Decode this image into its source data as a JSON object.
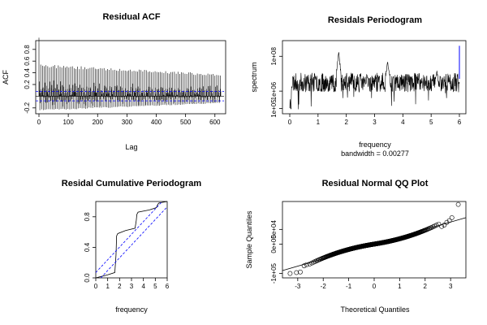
{
  "chart_data": [
    {
      "type": "bar",
      "title": "Residual ACF",
      "xlabel": "Lag",
      "ylabel": "ACF",
      "xlim": [
        0,
        620
      ],
      "ylim": [
        -0.3,
        0.95
      ],
      "xticks": [
        "0",
        "100",
        "200",
        "300",
        "400",
        "500",
        "600"
      ],
      "yticks": [
        "-0.2",
        "0.2",
        "0.4",
        "0.6",
        "0.8"
      ],
      "confidence_band": [
        -0.08,
        0.08
      ],
      "max_lag": 620,
      "lag0_value": 1.0,
      "seasonal_period": 6,
      "envelope": {
        "upper_start": 0.55,
        "upper_end": 0.38,
        "lower_start": -0.25,
        "lower_end": -0.12
      },
      "colors": {
        "band": "#0000ff",
        "bars": "#000000"
      }
    },
    {
      "type": "line",
      "title": "Residals Periodogram",
      "xlabel": "frequency",
      "sub": "bandwidth = 0.00277",
      "ylabel": "spectrum",
      "log_y": true,
      "xlim": [
        0,
        6
      ],
      "ylim_log10": [
        4.7,
        8.9
      ],
      "xticks": [
        "0",
        "1",
        "2",
        "3",
        "4",
        "5",
        "6"
      ],
      "yticks": [
        "1e+05",
        "1e+06",
        "1e+08"
      ],
      "baseline_log10": 6.5,
      "peaks": [
        {
          "x": 1.73,
          "log10": 8.2
        },
        {
          "x": 3.46,
          "log10": 7.8
        },
        {
          "x": 5.2,
          "log10": 7.2
        }
      ],
      "ci_bar": {
        "x": 6.0,
        "from_log10": 6.7,
        "to_log10": 8.6
      },
      "colors": {
        "line": "#000000",
        "ci": "#0000ff"
      }
    },
    {
      "type": "line",
      "title": "Residal Cumulative Periodogram",
      "xlabel": "frequency",
      "ylabel": "",
      "xlim": [
        0,
        6
      ],
      "ylim": [
        0,
        1
      ],
      "xticks": [
        "0",
        "1",
        "2",
        "3",
        "4",
        "5",
        "6"
      ],
      "yticks": [
        "0.0",
        "0.4",
        "0.8"
      ],
      "x": [
        0.0,
        1.0,
        1.6,
        1.7,
        1.75,
        1.85,
        2.5,
        3.3,
        3.4,
        3.45,
        3.55,
        4.5,
        5.1,
        5.2,
        5.3,
        6.0
      ],
      "y": [
        0.0,
        0.04,
        0.07,
        0.3,
        0.55,
        0.58,
        0.62,
        0.65,
        0.75,
        0.83,
        0.86,
        0.89,
        0.92,
        0.96,
        0.98,
        1.0
      ],
      "band_offset": 0.07,
      "colors": {
        "line": "#000000",
        "band": "#0000ff"
      }
    },
    {
      "type": "scatter",
      "title": "Residual Normal QQ Plot",
      "xlabel": "Theoretical Quantiles",
      "ylabel": "Sample Quantiles",
      "xlim": [
        -3.6,
        3.6
      ],
      "ylim": [
        -115000,
        145000
      ],
      "xticks": [
        "-3",
        "-2",
        "-1",
        "0",
        "1",
        "2",
        "3"
      ],
      "yticks": [
        "-1e+05",
        "0e+00",
        "5e+04"
      ],
      "n_points": 620,
      "reference_line": {
        "intercept": 0,
        "slope": 25000
      },
      "tail_points": [
        {
          "x": -3.3,
          "y": -100000
        },
        {
          "x": -3.05,
          "y": -97000
        },
        {
          "x": -2.9,
          "y": -95000
        },
        {
          "x": -2.75,
          "y": -74000
        },
        {
          "x": -2.65,
          "y": -70000
        },
        {
          "x": 2.65,
          "y": 60000
        },
        {
          "x": 2.75,
          "y": 65000
        },
        {
          "x": 2.85,
          "y": 74000
        },
        {
          "x": 2.95,
          "y": 80000
        },
        {
          "x": 3.05,
          "y": 90000
        },
        {
          "x": 3.3,
          "y": 135000
        }
      ]
    }
  ]
}
